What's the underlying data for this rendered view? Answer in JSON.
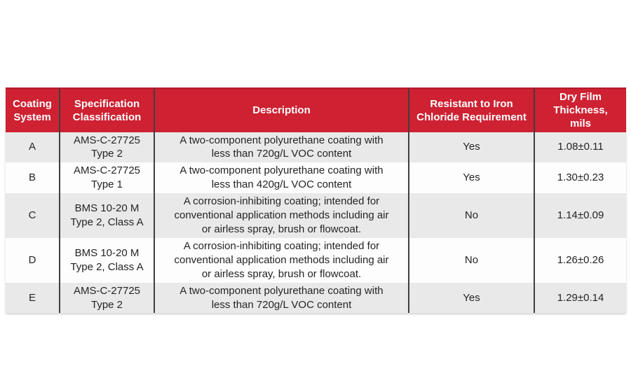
{
  "chart_data": {
    "type": "table",
    "title": "",
    "columns": [
      "Coating System",
      "Specification Classification",
      "Description",
      "Resistant to Iron Chloride Requirement",
      "Dry Film Thickness, mils"
    ],
    "rows": [
      [
        "A",
        "AMS-C-27725 Type 2",
        "A two-component polyurethane coating with less than 720g/L VOC content",
        "Yes",
        "1.08±0.11"
      ],
      [
        "B",
        "AMS-C-27725 Type 1",
        "A two-component polyurethane coating with less than 420g/L VOC content",
        "Yes",
        "1.30±0.23"
      ],
      [
        "C",
        "BMS 10-20 M Type 2, Class A",
        "A corrosion-inhibiting coating; intended for conventional application methods including air or airless spray, brush or flowcoat.",
        "No",
        "1.14±0.09"
      ],
      [
        "D",
        "BMS 10-20 M Type 2, Class A",
        "A corrosion-inhibiting coating; intended for conventional application methods including air or airless spray, brush or flowcoat.",
        "No",
        "1.26±0.26"
      ],
      [
        "E",
        "AMS-C-27725 Type 2",
        "A two-component polyurethane coating with less than 720g/L VOC content",
        "Yes",
        "1.29±0.14"
      ]
    ],
    "layout": {
      "header_position": "top",
      "grid": "vertical-separators-only",
      "row_striping": true
    }
  },
  "colors": {
    "header_bg": "#ce2132",
    "header_text": "#ffffff",
    "row_gray_bg": "#e9e9ea",
    "row_white_bg": "#fdfdfd",
    "column_divider": "#3f3f3f",
    "body_text": "#272325"
  },
  "table": {
    "columns": [
      {
        "label": "Coating\nSystem"
      },
      {
        "label": "Specification\nClassification"
      },
      {
        "label": "Description"
      },
      {
        "label": "Resistant to Iron\nChloride Requirement"
      },
      {
        "label": "Dry Film\nThickness, mils"
      }
    ],
    "rows": [
      {
        "coating_system": "A",
        "spec": "AMS-C-27725\nType 2",
        "description": "A two-component polyurethane coating with\nless than 720g/L VOC content",
        "resistant": "Yes",
        "thickness": "1.08±0.11"
      },
      {
        "coating_system": "B",
        "spec": "AMS-C-27725\nType 1",
        "description": "A two-component polyurethane coating with\nless than 420g/L VOC content",
        "resistant": "Yes",
        "thickness": "1.30±0.23"
      },
      {
        "coating_system": "C",
        "spec": "BMS 10-20 M\nType 2, Class A",
        "description": "A corrosion-inhibiting coating; intended for\nconventional application methods including air\nor airless spray, brush or flowcoat.",
        "resistant": "No",
        "thickness": "1.14±0.09"
      },
      {
        "coating_system": "D",
        "spec": "BMS 10-20 M\nType 2, Class A",
        "description": "A corrosion-inhibiting coating; intended for\nconventional application methods including air\nor airless spray, brush or flowcoat.",
        "resistant": "No",
        "thickness": "1.26±0.26"
      },
      {
        "coating_system": "E",
        "spec": "AMS-C-27725\nType 2",
        "description": "A two-component polyurethane coating with\nless than 720g/L VOC content",
        "resistant": "Yes",
        "thickness": "1.29±0.14"
      }
    ]
  }
}
